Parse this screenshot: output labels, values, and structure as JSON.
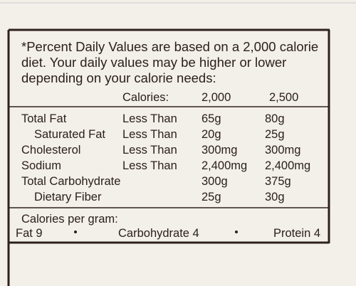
{
  "footnote": {
    "intro_lines": [
      "*Percent Daily Values are based on a 2,000 calorie",
      "diet.  Your daily values may be higher or lower",
      "depending on your calorie needs:"
    ],
    "header": {
      "label": "Calories:",
      "col1": "2,000",
      "col2": "2,500"
    },
    "rows": [
      {
        "nutrient": "Total Fat",
        "comparator": "Less Than",
        "col1": "65g",
        "col2": "80g",
        "indent": false
      },
      {
        "nutrient": "Saturated Fat",
        "comparator": "Less Than",
        "col1": "20g",
        "col2": "25g",
        "indent": true
      },
      {
        "nutrient": "Cholesterol",
        "comparator": "Less Than",
        "col1": "300mg",
        "col2": "300mg",
        "indent": false
      },
      {
        "nutrient": "Sodium",
        "comparator": "Less Than",
        "col1": "2,400mg",
        "col2": "2,400mg",
        "indent": false
      },
      {
        "nutrient": "Total Carbohydrate",
        "col1": "300g",
        "col2": "375g",
        "indent": false
      },
      {
        "nutrient": "Dietary Fiber",
        "col1": "25g",
        "col2": "30g",
        "indent": true
      }
    ],
    "per_gram_title": "Calories per gram:",
    "per_gram": [
      "Fat 9",
      "Carbohydrate 4",
      "Protein 4"
    ]
  }
}
